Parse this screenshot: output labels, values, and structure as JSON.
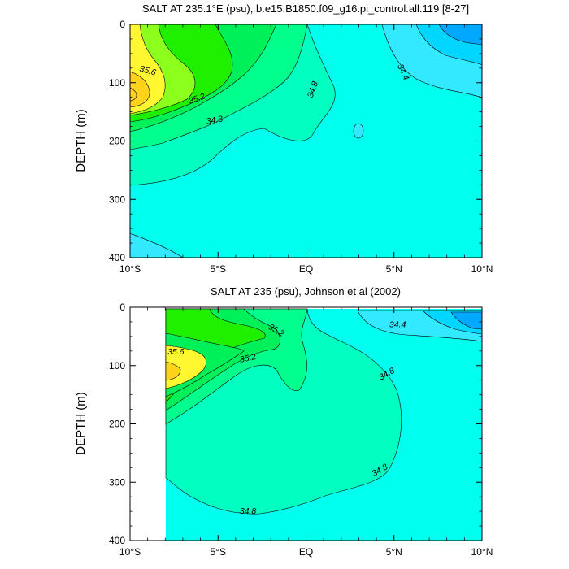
{
  "chart_data": [
    {
      "type": "contour",
      "title": "SALT AT 235.1°E (psu), b.e15.B1850.f09_g16.pi_control.all.119 [8-27]",
      "ylabel": "DEPTH (m)",
      "xticks": [
        {
          "value": -10,
          "label": "10°S"
        },
        {
          "value": -5,
          "label": "5°S"
        },
        {
          "value": 0,
          "label": "EQ"
        },
        {
          "value": 5,
          "label": "5°N"
        },
        {
          "value": 10,
          "label": "10°N"
        }
      ],
      "yticks": [
        0,
        100,
        200,
        300,
        400
      ],
      "xlim": [
        -10,
        10
      ],
      "ylim": [
        400,
        0
      ],
      "bands": [
        {
          "level": "low",
          "color": "#00a9ff"
        },
        {
          "level": "low2",
          "color": "#00d6ff"
        },
        {
          "level": "low3",
          "color": "#33e9ff"
        },
        {
          "level": "base",
          "color": "#00ffee"
        },
        {
          "level": "mid",
          "color": "#00ffc0"
        },
        {
          "level": "mid2",
          "color": "#00ff8c"
        },
        {
          "level": "mid3",
          "color": "#00f05a"
        },
        {
          "level": "green",
          "color": "#1ff000"
        },
        {
          "level": "lime",
          "color": "#8cff1c"
        },
        {
          "level": "yellow",
          "color": "#fff830"
        },
        {
          "level": "gold",
          "color": "#ffd21c"
        }
      ],
      "contour_labels": [
        {
          "text": "35.6",
          "x": -9.0,
          "y": 80,
          "angle": 15
        },
        {
          "text": "35.2",
          "x": -6.2,
          "y": 128,
          "angle": -20
        },
        {
          "text": "34.8",
          "x": -5.2,
          "y": 165,
          "angle": -10
        },
        {
          "text": "34.8",
          "x": 0.4,
          "y": 112,
          "angle": -70
        },
        {
          "text": "34.4",
          "x": 5.5,
          "y": 82,
          "angle": 65
        }
      ]
    },
    {
      "type": "contour",
      "title": "SALT AT 235 (psu), Johnson et al (2002)",
      "ylabel": "DEPTH (m)",
      "xticks": [
        {
          "value": -10,
          "label": "10°S"
        },
        {
          "value": -5,
          "label": "5°S"
        },
        {
          "value": 0,
          "label": "EQ"
        },
        {
          "value": 5,
          "label": "5°N"
        },
        {
          "value": 10,
          "label": "10°N"
        }
      ],
      "yticks": [
        0,
        100,
        200,
        300,
        400
      ],
      "xlim": [
        -10,
        10
      ],
      "ylim": [
        400,
        0
      ],
      "data_xlim": [
        -8,
        10
      ],
      "contour_labels": [
        {
          "text": "35.2",
          "x": -1.7,
          "y": 40,
          "angle": 30
        },
        {
          "text": "35.6",
          "x": -7.4,
          "y": 77,
          "angle": 0
        },
        {
          "text": "35.2",
          "x": -3.3,
          "y": 88,
          "angle": -12
        },
        {
          "text": "34.4",
          "x": 5.2,
          "y": 30,
          "angle": 0
        },
        {
          "text": "34.8",
          "x": 4.6,
          "y": 115,
          "angle": -30
        },
        {
          "text": "34.8",
          "x": 4.2,
          "y": 280,
          "angle": -30
        },
        {
          "text": "34.8",
          "x": -3.3,
          "y": 350,
          "angle": 0
        }
      ]
    }
  ]
}
